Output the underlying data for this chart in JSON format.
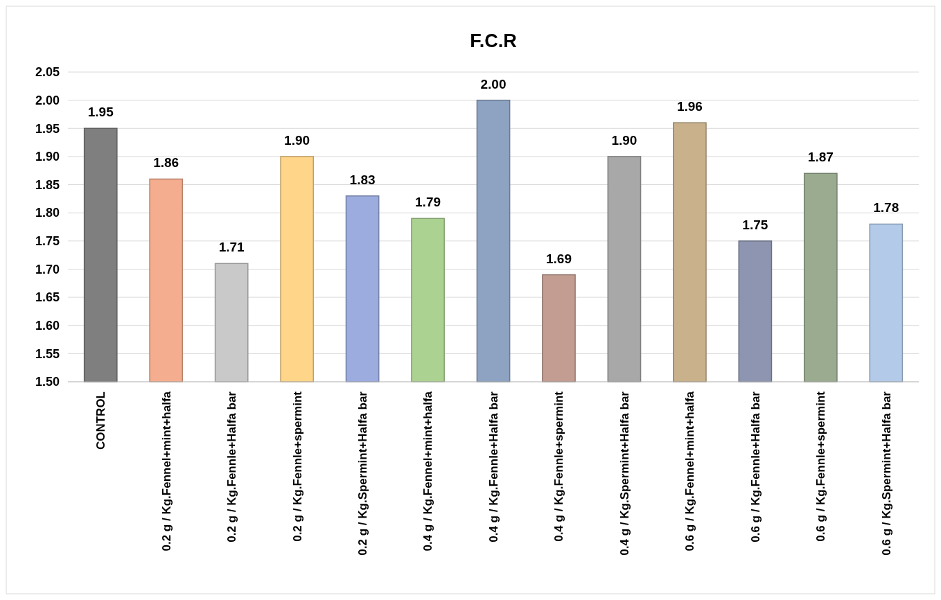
{
  "chart_data": {
    "type": "bar",
    "title": "F.C.R",
    "categories": [
      "CONTROL",
      "0.2 g / Kg.Fennel+mint+halfa",
      "0.2 g / Kg.Fennle+Halfa bar",
      "0.2 g / Kg.Fennle+spermint",
      "0.2 g / Kg.Spermint+Halfa bar",
      "0.4 g / Kg.Fennel+mint+halfa",
      "0.4 g / Kg.Fennle+Halfa bar",
      "0.4 g / Kg.Fennle+spermint",
      "0.4 g / Kg.Spermint+Halfa bar",
      "0.6 g / Kg.Fennel+mint+halfa",
      "0.6 g / Kg.Fennle+Halfa bar",
      "0.6 g / Kg.Fennle+spermint",
      "0.6 g / Kg.Spermint+Halfa bar"
    ],
    "values": [
      1.95,
      1.86,
      1.71,
      1.9,
      1.83,
      1.79,
      2.0,
      1.69,
      1.9,
      1.96,
      1.75,
      1.87,
      1.78
    ],
    "value_labels": [
      "1.95",
      "1.86",
      "1.71",
      "1.90",
      "1.83",
      "1.79",
      "2.00",
      "1.69",
      "1.90",
      "1.96",
      "1.75",
      "1.87",
      "1.78"
    ],
    "colors": [
      "#7f7f7f",
      "#f5ad8f",
      "#c9c9c9",
      "#ffd58a",
      "#9cacde",
      "#acd292",
      "#8ea3c2",
      "#c49d92",
      "#a8a8a8",
      "#c9b18c",
      "#8d95b0",
      "#9aab90",
      "#b3cbe9"
    ],
    "ylim": [
      1.5,
      2.05
    ],
    "yticks": [
      {
        "value": 1.5,
        "label": "1.50"
      },
      {
        "value": 1.55,
        "label": "1.55"
      },
      {
        "value": 1.6,
        "label": "1.60"
      },
      {
        "value": 1.65,
        "label": "1.65"
      },
      {
        "value": 1.7,
        "label": "1.70"
      },
      {
        "value": 1.75,
        "label": "1.75"
      },
      {
        "value": 1.8,
        "label": "1.80"
      },
      {
        "value": 1.85,
        "label": "1.85"
      },
      {
        "value": 1.9,
        "label": "1.90"
      },
      {
        "value": 1.95,
        "label": "1.95"
      },
      {
        "value": 2.0,
        "label": "2.00"
      },
      {
        "value": 2.05,
        "label": "2.05"
      }
    ],
    "grid": "y"
  }
}
